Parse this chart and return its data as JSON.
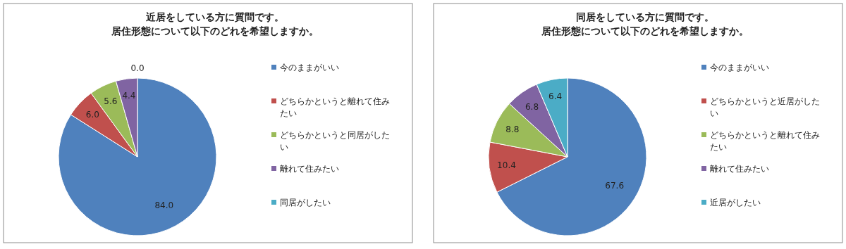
{
  "chart_data": [
    {
      "type": "pie",
      "title": "近居をしている方に質問です。居住形態について以下のどれを希望しますか。",
      "categories": [
        "今のままがいい",
        "どちらかというと離れて住みたい",
        "どちらかというと同居がしたい",
        "離れて住みたい",
        "同居がしたい"
      ],
      "values": [
        84.0,
        6.0,
        5.6,
        4.4,
        0.0
      ],
      "value_labels": [
        "84.0",
        "6.0",
        "5.6",
        "4.4",
        "0.0"
      ],
      "colors": [
        "#4f81bd",
        "#c0504d",
        "#9bbb59",
        "#8064a2",
        "#4bacc6"
      ],
      "legend": "right"
    },
    {
      "type": "pie",
      "title": "同居をしている方に質問です。居住形態について以下のどれを希望しますか。",
      "categories": [
        "今のままがいい",
        "どちらかというと近居がしたい",
        "どちらかというと離れて住みたい",
        "離れて住みたい",
        "近居がしたい"
      ],
      "values": [
        67.6,
        10.4,
        8.8,
        6.8,
        6.4
      ],
      "value_labels": [
        "67.6",
        "10.4",
        "8.8",
        "6.8",
        "6.4"
      ],
      "colors": [
        "#4f81bd",
        "#c0504d",
        "#9bbb59",
        "#8064a2",
        "#4bacc6"
      ],
      "legend": "right"
    }
  ]
}
